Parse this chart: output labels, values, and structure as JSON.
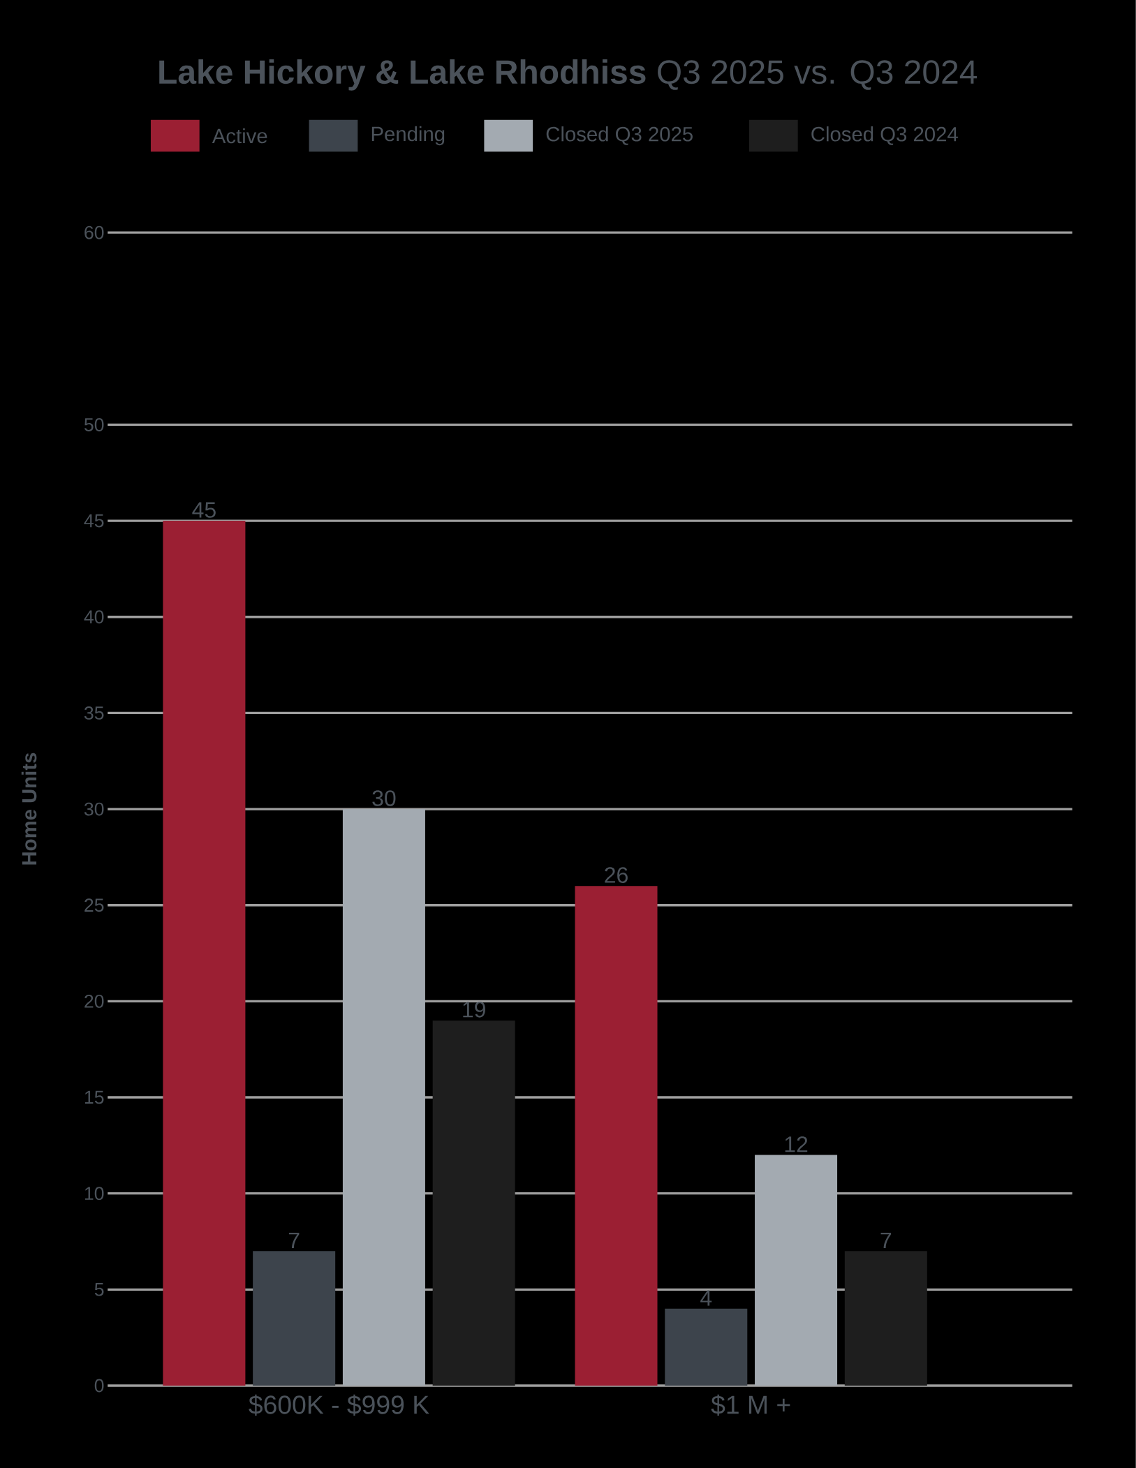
{
  "chart_data": {
    "type": "bar",
    "title": "**Lake Hickory & Lake Rhodhiss** Q3 2025 vs. Q3 2024",
    "ylabel": "Home Units",
    "categories": [
      "$600K - $999 K",
      "$1 M +"
    ],
    "series": [
      {
        "name": "Active",
        "color": "#9b1f33",
        "values": [
          45,
          26
        ]
      },
      {
        "name": "Pending",
        "color": "#3d444c",
        "values": [
          7,
          4
        ]
      },
      {
        "name": "Closed Q3 2025",
        "color": "#a3aab1",
        "values": [
          30,
          12
        ]
      },
      {
        "name": "Closed Q3 2024",
        "color": "#1e1e1e",
        "values": [
          19,
          7
        ]
      }
    ],
    "ylim": [
      0,
      60
    ],
    "yticks": [
      0,
      5,
      10,
      15,
      20,
      25,
      30,
      35,
      40,
      45,
      50,
      60
    ],
    "grid": "y",
    "legend": "top",
    "data_labels": true
  }
}
